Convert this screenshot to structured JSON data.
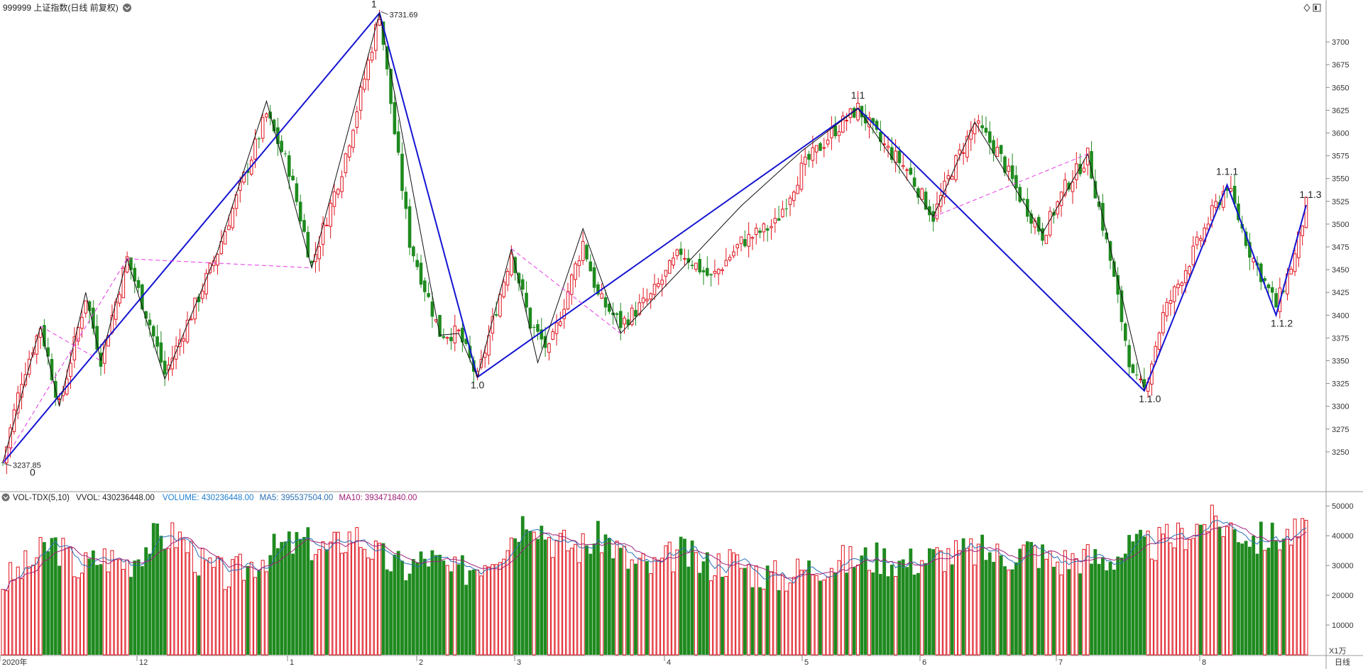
{
  "header": {
    "title": "999999 上证指数(日线 前复权)",
    "icon_right_1": "diamond-icon",
    "icon_right_2": "panel-toggle-icon"
  },
  "volume_header": {
    "indicator": "VOL-TDX(5,10)",
    "vvol": "VVOL: 430236448.00",
    "volume": "VOLUME: 430236448.00",
    "ma5": "MA5: 395537504.00",
    "ma10": "MA10: 393471840.00",
    "colors": {
      "volume": "#1f7fd0",
      "ma5": "#2a6fb5",
      "ma10": "#a0207a"
    }
  },
  "colors": {
    "up": "#e0141e",
    "down": "#1f8a1f",
    "wave_main": "#1414d2",
    "wave_sub": "#111111",
    "channel": "#e638e6"
  },
  "chart_data": [
    {
      "type": "candlestick",
      "title": "999999 上证指数(日线 前复权)",
      "ylim": [
        3215,
        3740
      ],
      "y_ticks": [
        3250,
        3275,
        3300,
        3325,
        3350,
        3375,
        3400,
        3425,
        3450,
        3475,
        3500,
        3525,
        3550,
        3575,
        3600,
        3625,
        3650,
        3675,
        3700
      ],
      "price_labels": {
        "high": "3731.69",
        "low": "3237.85"
      },
      "pivots": [
        {
          "label": "0",
          "value": 3237.85
        },
        {
          "label": "1",
          "value": 3731.69
        },
        {
          "label": "1.0",
          "value": 3332
        },
        {
          "label": "1.1",
          "value": 3627
        },
        {
          "label": "1.1.0",
          "value": 3317
        },
        {
          "label": "1.1.1",
          "value": 3543
        },
        {
          "label": "1.1.2",
          "value": 3400
        },
        {
          "label": "1.1.3",
          "value": 3521
        }
      ],
      "grid": false
    },
    {
      "type": "bar",
      "title": "VOL-TDX(5,10)",
      "series": [
        {
          "name": "VOLUME"
        },
        {
          "name": "MA5"
        },
        {
          "name": "MA10"
        }
      ],
      "ylim": [
        0,
        52000
      ],
      "y_ticks": [
        10000,
        20000,
        30000,
        40000,
        50000
      ],
      "unit": "X1万",
      "volume_ref": [
        24000,
        30000,
        38000,
        29000,
        33000,
        31000,
        39000,
        40000,
        30000,
        26000,
        31000,
        36000,
        38000,
        35000,
        41000,
        33000,
        29000,
        33000,
        27000,
        31000,
        37000,
        48000,
        38000,
        36000,
        40000,
        31000,
        29000,
        35000,
        30000,
        32000,
        28000,
        26000,
        29000,
        31000,
        32000,
        33000,
        31000,
        33000,
        34000,
        35000,
        33000,
        36000,
        31000,
        33000,
        32000,
        36000,
        37000,
        40000,
        45000,
        43000,
        39000,
        40000,
        41000
      ]
    }
  ],
  "x_axis": {
    "labels": [
      "2020年",
      "12",
      "1",
      "2",
      "3",
      "4",
      "5",
      "6",
      "7",
      "8"
    ],
    "right_label": "日线"
  }
}
